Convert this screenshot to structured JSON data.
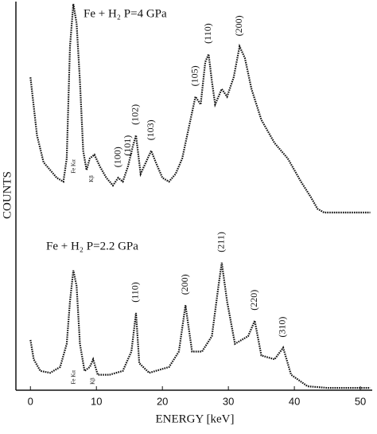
{
  "chart_data": {
    "type": "line",
    "x_label": "ENERGY [keV]",
    "y_label": "COUNTS",
    "xlim": [
      -2.2,
      51.8
    ],
    "xticks": [
      0,
      10,
      20,
      30,
      40,
      50
    ],
    "ylim": [
      0,
      100
    ],
    "series": [
      {
        "name": "Fe + H₂ P=4 GPa",
        "color": "#111111",
        "x": [
          0,
          1,
          2,
          3,
          4,
          5,
          5.5,
          6,
          6.5,
          7,
          7.5,
          8,
          8.5,
          9,
          9.7,
          10.5,
          11.5,
          12.5,
          13.3,
          14,
          14.8,
          15.5,
          16,
          16.7,
          17.5,
          18.3,
          19,
          20,
          21,
          22,
          23,
          24,
          25,
          25.8,
          26.5,
          27,
          27.5,
          28,
          29,
          29.8,
          30.8,
          31.7,
          32.5,
          33.5,
          35,
          37,
          39,
          41,
          42.5,
          43.5,
          44.5,
          48,
          51.5
        ],
        "values": [
          81,
          66,
          59,
          57,
          55,
          54,
          60,
          89,
          100,
          95,
          80,
          62,
          57,
          60,
          61,
          58,
          55,
          53,
          55,
          54,
          58,
          63,
          66,
          56,
          59,
          62,
          59,
          55,
          54,
          56,
          60,
          68,
          76,
          74,
          85,
          87,
          80,
          74,
          78,
          76,
          81,
          89,
          86,
          78,
          70,
          64,
          60,
          54,
          50,
          47,
          46,
          46,
          46
        ],
        "peaks": [
          {
            "label": "(100)",
            "x": 13.3
          },
          {
            "label": "(101)",
            "x": 14.8
          },
          {
            "label": "(102)",
            "x": 16
          },
          {
            "label": "(103)",
            "x": 18.3
          },
          {
            "label": "(105)",
            "x": 25
          },
          {
            "label": "(110)",
            "x": 27
          },
          {
            "label": "(200)",
            "x": 31.7
          }
        ],
        "lines": [
          {
            "label": "Fe Kα",
            "x": 6.6
          },
          {
            "label": "Kβ",
            "x": 9.3
          }
        ]
      },
      {
        "name": "Fe + H₂ P=2.2 GPa",
        "color": "#111111",
        "x": [
          0,
          0.5,
          1.5,
          3,
          4.5,
          5.5,
          6,
          6.5,
          7,
          7.5,
          8.2,
          9,
          9.5,
          10.2,
          12,
          14,
          15.3,
          16,
          16.5,
          18,
          21,
          22.5,
          23.5,
          24.5,
          26,
          27.5,
          28.5,
          29,
          29.8,
          31,
          33,
          34,
          35,
          37,
          38.3,
          39.5,
          42,
          45,
          51.5
        ],
        "values": [
          13,
          8,
          5,
          4.5,
          6,
          12,
          23,
          31,
          27,
          12,
          5,
          6,
          8,
          4,
          4,
          5,
          10,
          20,
          7,
          4.5,
          6,
          10,
          22,
          10,
          10,
          14,
          27,
          33,
          23,
          12,
          14,
          18,
          9,
          8,
          11,
          4,
          1,
          0.6,
          0.6
        ],
        "peaks": [
          {
            "label": "(110)",
            "x": 16
          },
          {
            "label": "(200)",
            "x": 23.5
          },
          {
            "label": "(211)",
            "x": 29
          },
          {
            "label": "(220)",
            "x": 34
          },
          {
            "label": "(310)",
            "x": 38.3
          }
        ],
        "lines": [
          {
            "label": "Fe Kα",
            "x": 6.6
          },
          {
            "label": "Kβ",
            "x": 9.5
          }
        ]
      }
    ]
  }
}
